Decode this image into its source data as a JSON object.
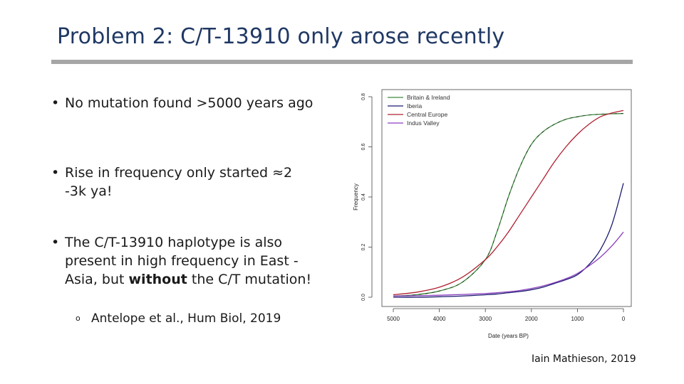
{
  "slide": {
    "title": "Problem 2: C/T-13910 only arose recently",
    "bullet1": "No mutation found >5000 years ago",
    "bullet2": "Rise in frequency only started ≈2 -3k ya!",
    "bullet3_before": "The C/T-13910 haplotype is also present in high frequency in East -Asia, but ",
    "bullet3_bold": "without",
    "bullet3_after": " the C/T mutation!",
    "sub_bullet": "Antelope et al., Hum Biol, 2019",
    "credit": "Iain Mathieson, 2019"
  },
  "chart_data": {
    "type": "line",
    "title": "",
    "xlabel": "Date (years BP)",
    "ylabel": "Frequency",
    "xlim": [
      5000,
      0
    ],
    "ylim": [
      0,
      0.8
    ],
    "x_ticks": [
      5000,
      4000,
      3000,
      2000,
      1000,
      0
    ],
    "y_ticks": [
      0.0,
      0.2,
      0.4,
      0.6,
      0.8
    ],
    "y_tick_labels": [
      "0.0",
      "0.2",
      "0.4",
      "0.6",
      "0.8"
    ],
    "grid": false,
    "legend_position": "top-left",
    "x": [
      5000,
      4500,
      4000,
      3500,
      3000,
      2750,
      2500,
      2250,
      2000,
      1750,
      1500,
      1250,
      1000,
      750,
      500,
      250,
      0
    ],
    "series": [
      {
        "name": "Britain & Ireland",
        "color": "#3d8b3d",
        "dashed": true,
        "values": [
          0.005,
          0.01,
          0.025,
          0.06,
          0.15,
          0.26,
          0.4,
          0.52,
          0.61,
          0.66,
          0.69,
          0.71,
          0.72,
          0.727,
          0.73,
          0.732,
          0.733
        ]
      },
      {
        "name": "Iberia",
        "color": "#1a1a6e",
        "dashed": false,
        "values": [
          0.0,
          0.0,
          0.002,
          0.005,
          0.01,
          0.013,
          0.018,
          0.023,
          0.03,
          0.04,
          0.055,
          0.07,
          0.09,
          0.13,
          0.19,
          0.29,
          0.455
        ]
      },
      {
        "name": "Central Europe",
        "color": "#b02030",
        "dashed": false,
        "values": [
          0.01,
          0.02,
          0.04,
          0.08,
          0.15,
          0.2,
          0.26,
          0.33,
          0.4,
          0.47,
          0.54,
          0.6,
          0.65,
          0.69,
          0.72,
          0.735,
          0.745
        ]
      },
      {
        "name": "Indus Valley",
        "color": "#8a3fbf",
        "dashed": false,
        "values": [
          0.005,
          0.006,
          0.008,
          0.011,
          0.015,
          0.018,
          0.022,
          0.027,
          0.035,
          0.045,
          0.058,
          0.074,
          0.095,
          0.125,
          0.16,
          0.205,
          0.26
        ]
      }
    ]
  }
}
